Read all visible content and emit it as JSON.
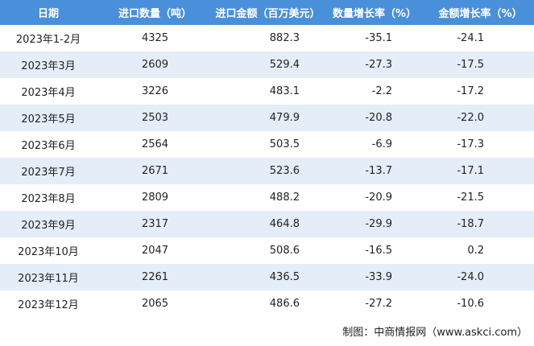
{
  "table": {
    "columns": [
      "日期",
      "进口数量（吨）",
      "进口金额（百万美元）",
      "数量增长率（%）",
      "金额增长率（%）"
    ],
    "rows": [
      [
        "2023年1-2月",
        "4325",
        "882.3",
        "-35.1",
        "-24.1"
      ],
      [
        "2023年3月",
        "2609",
        "529.4",
        "-27.3",
        "-17.5"
      ],
      [
        "2023年4月",
        "3226",
        "483.1",
        "-2.2",
        "-17.2"
      ],
      [
        "2023年5月",
        "2503",
        "479.9",
        "-20.8",
        "-22.0"
      ],
      [
        "2023年6月",
        "2564",
        "503.5",
        "-6.9",
        "-17.3"
      ],
      [
        "2023年7月",
        "2671",
        "523.6",
        "-13.7",
        "-17.1"
      ],
      [
        "2023年8月",
        "2809",
        "488.2",
        "-20.9",
        "-21.5"
      ],
      [
        "2023年9月",
        "2317",
        "464.8",
        "-29.9",
        "-18.7"
      ],
      [
        "2023年10月",
        "2047",
        "508.6",
        "-16.5",
        "0.2"
      ],
      [
        "2023年11月",
        "2261",
        "436.5",
        "-33.9",
        "-24.0"
      ],
      [
        "2023年12月",
        "2065",
        "486.6",
        "-27.2",
        "-10.6"
      ]
    ]
  },
  "footer": "制图：中商情报网（www.askci.com）"
}
